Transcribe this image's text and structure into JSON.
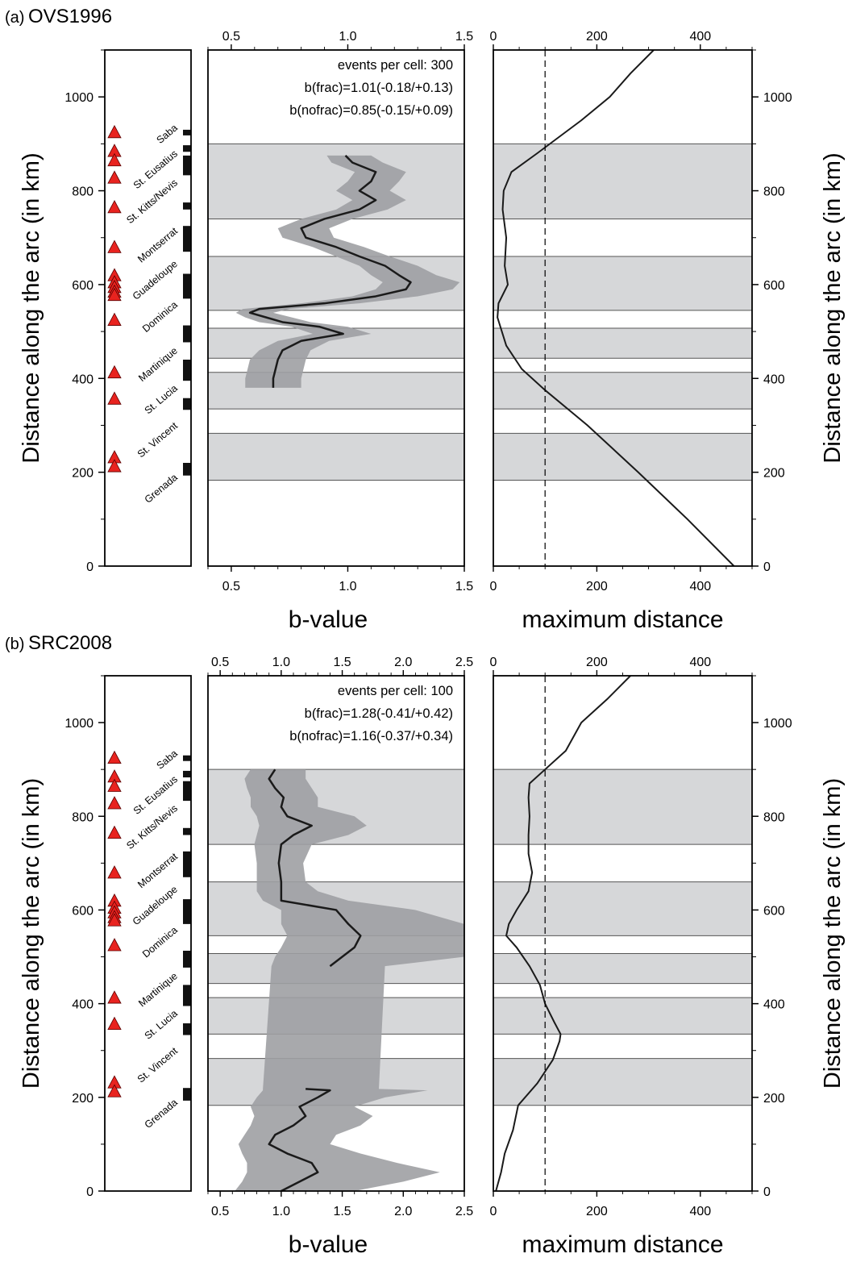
{
  "figure": {
    "y_axis_label": "Distance along the arc (in km)",
    "bvalue_axis_label": "b-value",
    "maxdist_axis_label": "maximum distance",
    "y_ticks": [
      0,
      200,
      400,
      600,
      800,
      1000
    ],
    "colors": {
      "volcano": "#e8231f",
      "segment_band": "#d6d7d9",
      "uncertainty": "#9fa0a3",
      "curve": "#1a1a1a"
    },
    "bands": [
      [
        183,
        283
      ],
      [
        335,
        413
      ],
      [
        443,
        507
      ],
      [
        545,
        660
      ],
      [
        740,
        900
      ]
    ],
    "volcanoes_km": [
      925,
      885,
      865,
      828,
      765,
      680,
      620,
      605,
      595,
      585,
      578,
      525,
      413,
      357,
      232,
      213
    ],
    "island_labels": [
      {
        "name": "Saba",
        "km": 925
      },
      {
        "name": "St. Eusatius",
        "km": 870
      },
      {
        "name": "St. Kitts/Nevis",
        "km": 808
      },
      {
        "name": "Montserrat",
        "km": 705
      },
      {
        "name": "Guadeloupe",
        "km": 635
      },
      {
        "name": "Dominica",
        "km": 548
      },
      {
        "name": "Martinique",
        "km": 450
      },
      {
        "name": "St. Lucia",
        "km": 370
      },
      {
        "name": "St. Vincent",
        "km": 290
      },
      {
        "name": "Grenada",
        "km": 180
      }
    ],
    "island_bars": [
      [
        918,
        930
      ],
      [
        883,
        897
      ],
      [
        833,
        875
      ],
      [
        760,
        775
      ],
      [
        670,
        725
      ],
      [
        570,
        623
      ],
      [
        477,
        513
      ],
      [
        395,
        440
      ],
      [
        333,
        358
      ],
      [
        193,
        220
      ]
    ]
  },
  "panels": [
    {
      "tag": "(a)",
      "name": "OVS1996",
      "stats": {
        "events": "events per cell:   300",
        "b_frac": "b(frac)=1.01(-0.18/+0.13)",
        "b_nofrac": "b(nofrac)=0.85(-0.15/+0.09)"
      }
    },
    {
      "tag": "(b)",
      "name": "SRC2008",
      "stats": {
        "events": "events per cell:   100",
        "b_frac": "b(frac)=1.28(-0.41/+0.42)",
        "b_nofrac": "b(nofrac)=1.16(-0.37/+0.34)"
      }
    }
  ],
  "chart_data": [
    {
      "type": "line",
      "panel": "(a) OVS1996",
      "xlabel": "b-value",
      "ylabel": "Distance along the arc (in km)",
      "xlim": [
        0.4,
        1.5
      ],
      "ylim": [
        0,
        1100
      ],
      "x_ticks": [
        0.5,
        1.0,
        1.5
      ],
      "y": [
        380,
        400,
        420,
        440,
        460,
        480,
        495,
        510,
        520,
        530,
        540,
        548,
        560,
        575,
        590,
        605,
        620,
        640,
        660,
        680,
        700,
        720,
        740,
        760,
        780,
        800,
        820,
        840,
        860,
        875
      ],
      "b_value": [
        0.68,
        0.68,
        0.69,
        0.7,
        0.72,
        0.8,
        0.98,
        0.88,
        0.72,
        0.65,
        0.58,
        0.62,
        0.9,
        1.12,
        1.25,
        1.27,
        1.22,
        1.16,
        1.05,
        0.95,
        0.82,
        0.8,
        0.9,
        1.05,
        1.12,
        1.05,
        1.1,
        1.12,
        1.02,
        0.99
      ],
      "lower": [
        0.56,
        0.56,
        0.57,
        0.58,
        0.62,
        0.7,
        0.85,
        0.76,
        0.62,
        0.56,
        0.52,
        0.55,
        0.8,
        1.02,
        1.12,
        1.15,
        1.1,
        1.05,
        0.95,
        0.85,
        0.72,
        0.7,
        0.8,
        0.95,
        1.02,
        0.95,
        1.0,
        1.03,
        0.93,
        0.91
      ],
      "upper": [
        0.8,
        0.8,
        0.81,
        0.82,
        0.84,
        0.92,
        1.1,
        1.0,
        0.84,
        0.76,
        0.68,
        0.75,
        1.05,
        1.3,
        1.45,
        1.48,
        1.38,
        1.3,
        1.18,
        1.07,
        0.94,
        0.92,
        1.02,
        1.17,
        1.25,
        1.18,
        1.22,
        1.25,
        1.15,
        1.1
      ],
      "maxdist_panel": {
        "xlabel": "maximum distance",
        "xlim": [
          0,
          500
        ],
        "x_ticks": [
          0,
          200,
          400
        ],
        "reference_line": 100,
        "y": [
          0,
          100,
          200,
          300,
          375,
          420,
          470,
          530,
          560,
          600,
          640,
          700,
          760,
          800,
          840,
          880,
          950,
          1000,
          1050,
          1100
        ],
        "distance": [
          465,
          375,
          280,
          182,
          100,
          55,
          25,
          8,
          10,
          28,
          22,
          25,
          18,
          20,
          35,
          85,
          170,
          225,
          265,
          310
        ]
      }
    },
    {
      "type": "line",
      "panel": "(b) SRC2008",
      "xlabel": "b-value",
      "ylabel": "Distance along the arc (in km)",
      "xlim": [
        0.4,
        2.5
      ],
      "ylim": [
        0,
        1100
      ],
      "x_ticks": [
        0.5,
        1.0,
        1.5,
        2.0,
        2.5
      ],
      "y": [
        0,
        20,
        40,
        60,
        80,
        100,
        120,
        140,
        160,
        180,
        200,
        215,
        218,
        480,
        500,
        520,
        545,
        570,
        600,
        620,
        640,
        660,
        700,
        740,
        760,
        780,
        800,
        820,
        840,
        860,
        880,
        900
      ],
      "b_value": [
        1.0,
        1.15,
        1.3,
        1.25,
        1.05,
        0.9,
        0.95,
        1.1,
        1.2,
        1.15,
        1.3,
        1.4,
        1.2,
        1.4,
        1.5,
        1.6,
        1.65,
        1.55,
        1.45,
        1.0,
        1.0,
        1.0,
        0.98,
        1.0,
        1.1,
        1.25,
        1.05,
        1.0,
        1.02,
        0.95,
        0.9,
        0.95
      ],
      "lower": [
        0.62,
        0.68,
        0.72,
        0.72,
        0.68,
        0.65,
        0.7,
        0.75,
        0.78,
        0.75,
        0.8,
        0.85,
        0.85,
        0.92,
        0.95,
        1.0,
        1.05,
        1.0,
        1.0,
        0.85,
        0.8,
        0.8,
        0.8,
        0.78,
        0.8,
        0.82,
        0.8,
        0.75,
        0.75,
        0.72,
        0.7,
        0.75
      ],
      "upper": [
        1.6,
        2.0,
        2.3,
        1.95,
        1.65,
        1.4,
        1.45,
        1.65,
        1.75,
        1.6,
        1.85,
        2.2,
        1.8,
        1.85,
        2.5,
        2.5,
        2.5,
        2.5,
        2.1,
        1.55,
        1.3,
        1.2,
        1.18,
        1.25,
        1.55,
        1.7,
        1.6,
        1.3,
        1.3,
        1.25,
        1.2,
        1.2
      ],
      "maxdist_panel": {
        "xlabel": "maximum distance",
        "xlim": [
          0,
          500
        ],
        "x_ticks": [
          0,
          200,
          400
        ],
        "reference_line": 100,
        "y": [
          0,
          40,
          80,
          130,
          183,
          230,
          280,
          320,
          335,
          360,
          400,
          440,
          480,
          520,
          545,
          570,
          600,
          640,
          680,
          720,
          760,
          800,
          840,
          870,
          900,
          940,
          1000,
          1050,
          1100
        ],
        "distance": [
          5,
          15,
          22,
          38,
          48,
          85,
          115,
          128,
          130,
          118,
          100,
          90,
          70,
          45,
          25,
          30,
          45,
          68,
          75,
          68,
          68,
          70,
          68,
          70,
          100,
          140,
          170,
          220,
          265
        ]
      }
    }
  ]
}
